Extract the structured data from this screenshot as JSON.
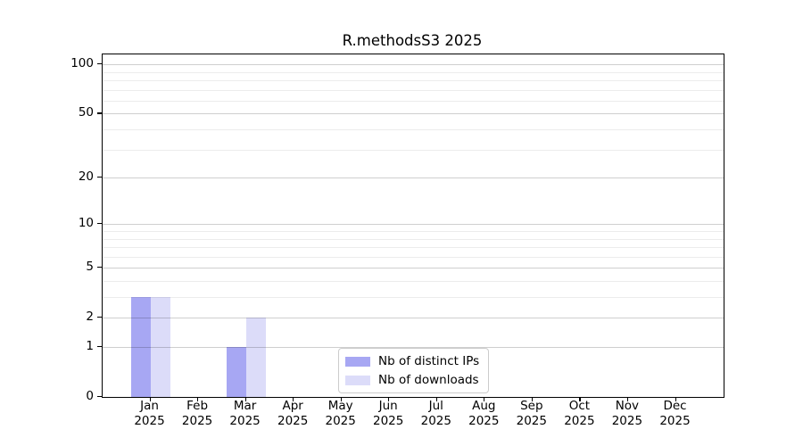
{
  "title": "R.methodsS3 2025",
  "chart_data": {
    "type": "bar",
    "title": "R.methodsS3 2025",
    "categories": [
      "Jan 2025",
      "Feb 2025",
      "Mar 2025",
      "Apr 2025",
      "May 2025",
      "Jun 2025",
      "Jul 2025",
      "Aug 2025",
      "Sep 2025",
      "Oct 2025",
      "Nov 2025",
      "Dec 2025"
    ],
    "x_months": [
      "Jan",
      "Feb",
      "Mar",
      "Apr",
      "May",
      "Jun",
      "Jul",
      "Aug",
      "Sep",
      "Oct",
      "Nov",
      "Dec"
    ],
    "x_year": "2025",
    "series": [
      {
        "name": "Nb of distinct IPs",
        "color": "#a7a7f3",
        "values": [
          3,
          0,
          1,
          0,
          0,
          0,
          0,
          0,
          0,
          0,
          0,
          0
        ]
      },
      {
        "name": "Nb of downloads",
        "color": "#dcdcf9",
        "values": [
          3,
          0,
          2,
          0,
          0,
          0,
          0,
          0,
          0,
          0,
          0,
          0
        ]
      }
    ],
    "xlabel": "",
    "ylabel": "",
    "y_scale": "log10(value+1)",
    "ylim": [
      0,
      115
    ],
    "y_major_ticks": [
      0,
      1,
      2,
      5,
      10,
      20,
      50,
      100
    ],
    "y_minor_gridlines": [
      3,
      4,
      6,
      7,
      8,
      9,
      30,
      40,
      60,
      70,
      80,
      90
    ],
    "grid": true,
    "legend_position": "bottom-center"
  }
}
